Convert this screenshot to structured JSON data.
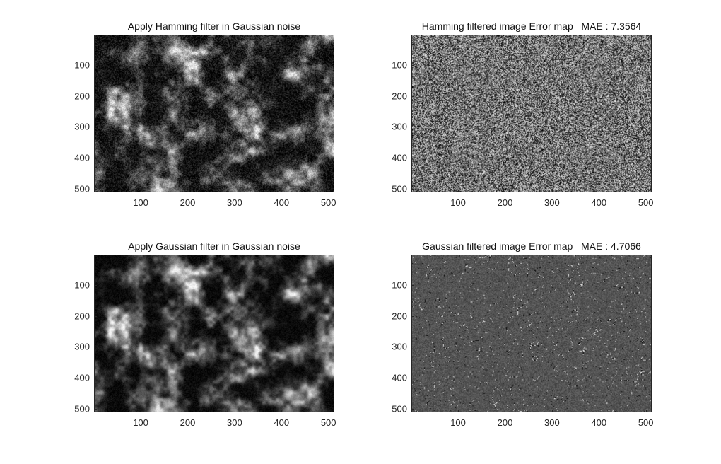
{
  "figure": {
    "panels": [
      {
        "id": "hamming-filtered-image",
        "title": "Apply Hamming filter in Gaussian noise",
        "kind": "photo-noisy"
      },
      {
        "id": "hamming-error-map",
        "title": "Hamming filtered image Error map   MAE : 7.3564",
        "kind": "error-coarse"
      },
      {
        "id": "gaussian-filtered-image",
        "title": "Apply Gaussian filter in Gaussian noise",
        "kind": "photo-smooth"
      },
      {
        "id": "gaussian-error-map",
        "title": "Gaussian filtered image Error map   MAE : 4.7066",
        "kind": "error-fine"
      }
    ]
  },
  "chart_data": [
    {
      "type": "heatmap",
      "title": "Apply Hamming filter in Gaussian noise",
      "xticks": [
        100,
        200,
        300,
        400,
        500
      ],
      "yticks": [
        100,
        200,
        300,
        400,
        500
      ],
      "xlim": [
        0.5,
        512.5
      ],
      "ylim": [
        0.5,
        512.5
      ],
      "colormap": "gray"
    },
    {
      "type": "heatmap",
      "title": "Hamming filtered image Error map   MAE : 7.3564",
      "mae": 7.3564,
      "xticks": [
        100,
        200,
        300,
        400,
        500
      ],
      "yticks": [
        100,
        200,
        300,
        400,
        500
      ],
      "xlim": [
        0.5,
        512.5
      ],
      "ylim": [
        0.5,
        512.5
      ],
      "colormap": "gray"
    },
    {
      "type": "heatmap",
      "title": "Apply Gaussian filter in Gaussian noise",
      "xticks": [
        100,
        200,
        300,
        400,
        500
      ],
      "yticks": [
        100,
        200,
        300,
        400,
        500
      ],
      "xlim": [
        0.5,
        512.5
      ],
      "ylim": [
        0.5,
        512.5
      ],
      "colormap": "gray"
    },
    {
      "type": "heatmap",
      "title": "Gaussian filtered image Error map   MAE : 4.7066",
      "mae": 4.7066,
      "xticks": [
        100,
        200,
        300,
        400,
        500
      ],
      "yticks": [
        100,
        200,
        300,
        400,
        500
      ],
      "xlim": [
        0.5,
        512.5
      ],
      "ylim": [
        0.5,
        512.5
      ],
      "colormap": "gray"
    }
  ]
}
